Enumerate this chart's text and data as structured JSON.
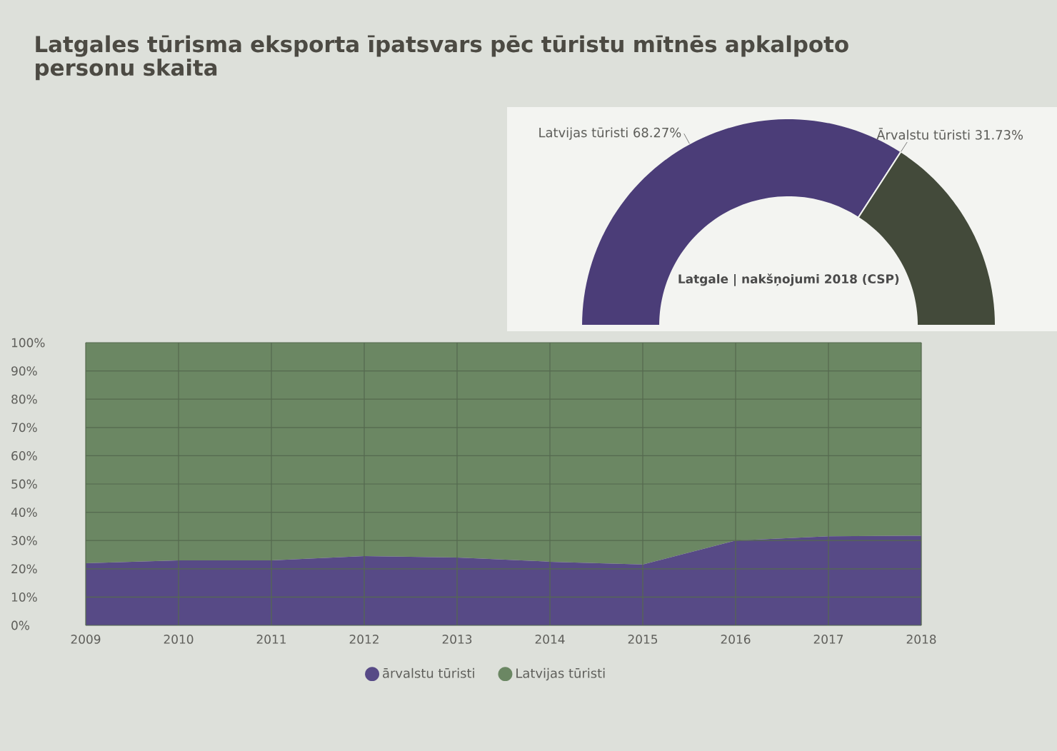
{
  "chart_data": [
    {
      "type": "area",
      "title": "Latgales tūrisma eksporta īpatsvars pēc tūristu mītnēs apkalpoto personu skaita",
      "x": [
        2009,
        2010,
        2011,
        2012,
        2013,
        2014,
        2015,
        2016,
        2017,
        2018
      ],
      "series": [
        {
          "name": "ārvalstu tūristi",
          "color": "#574a86",
          "values": [
            22,
            23,
            23,
            24.5,
            24,
            22.5,
            21.5,
            30,
            31.5,
            31.7
          ]
        },
        {
          "name": "Latvijas tūristi",
          "color": "#6b8763",
          "values": [
            78,
            77,
            77,
            75.5,
            76,
            77.5,
            78.5,
            70,
            68.5,
            68.3
          ]
        }
      ],
      "stacked": true,
      "xlim": [
        2009,
        2018
      ],
      "xticks": [
        2009,
        2010,
        2011,
        2012,
        2013,
        2014,
        2015,
        2016,
        2017,
        2018
      ],
      "ylim": [
        0,
        100
      ],
      "yticks": [
        {
          "value": 0,
          "label": "0%"
        },
        {
          "value": 10,
          "label": "10%"
        },
        {
          "value": 20,
          "label": "20%"
        },
        {
          "value": 30,
          "label": "30%"
        },
        {
          "value": 40,
          "label": "40%"
        },
        {
          "value": 50,
          "label": "50%"
        },
        {
          "value": 60,
          "label": "60%"
        },
        {
          "value": 70,
          "label": "70%"
        },
        {
          "value": 80,
          "label": "80%"
        },
        {
          "value": 90,
          "label": "90%"
        },
        {
          "value": 100,
          "label": "100%"
        }
      ],
      "grid": true,
      "legend": "bottom"
    },
    {
      "type": "donut",
      "title": "Latgale | nakšņojumi 2018 (CSP)",
      "categories": [
        "Latvijas tūristi",
        "Ārvalstu tūristi"
      ],
      "values": [
        68.27,
        31.73
      ],
      "value_labels": [
        "68.27%",
        "31.73%"
      ],
      "colors": [
        "#4b3d78",
        "#434a3a"
      ]
    }
  ]
}
